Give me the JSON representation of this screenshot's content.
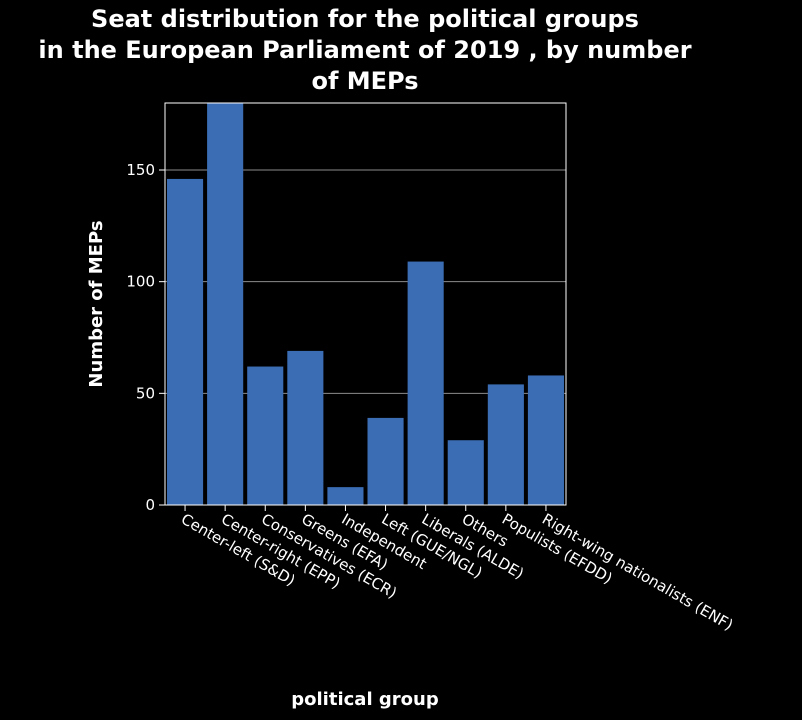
{
  "chart_data": {
    "type": "bar",
    "title_lines": [
      "Seat distribution for the political groups",
      "in the European Parliament of 2019 , by number",
      "of MEPs"
    ],
    "xlabel": "political group",
    "ylabel": "Number of MEPs",
    "categories": [
      "Center-left (S&D)",
      "Center-right (EPP)",
      "Conservatives (ECR)",
      "Greens (EFA)",
      "Independent",
      "Left (GUE/NGL)",
      "Liberals (ALDE)",
      "Others",
      "Populists (EFDD)",
      "Right-wing nationalists (ENF)"
    ],
    "values": [
      146,
      180,
      62,
      69,
      8,
      39,
      109,
      29,
      54,
      58
    ],
    "yticks": [
      0,
      50,
      100,
      150
    ],
    "ylim": [
      0,
      180
    ],
    "grid": true,
    "bar_color": "#3b6db5",
    "background": "#000000"
  }
}
